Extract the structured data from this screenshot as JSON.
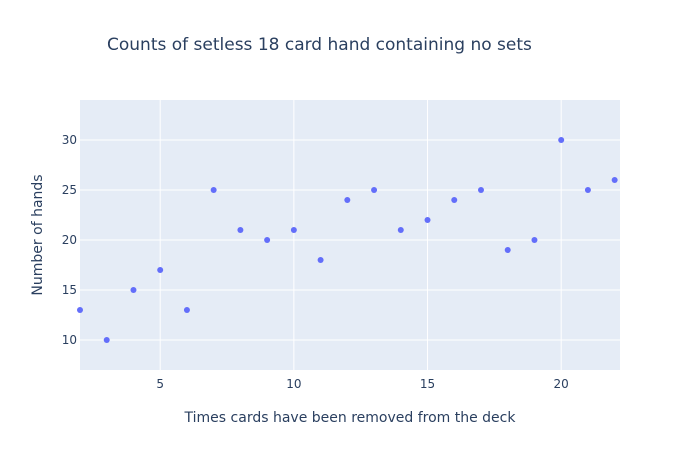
{
  "chart_data": {
    "type": "scatter",
    "title": "Counts of setless 18 card hand containing no sets",
    "xlabel": "Times cards have been removed from the deck",
    "ylabel": "Number of hands",
    "xlim": [
      2,
      22.2
    ],
    "ylim": [
      7,
      34
    ],
    "x_ticks": [
      5,
      10,
      15,
      20
    ],
    "y_ticks": [
      10,
      15,
      20,
      25,
      30
    ],
    "grid": true,
    "marker_color": "#636efa",
    "background_color": "#e5ecf6",
    "points": [
      {
        "x": 2,
        "y": 13
      },
      {
        "x": 3,
        "y": 10
      },
      {
        "x": 4,
        "y": 15
      },
      {
        "x": 5,
        "y": 17
      },
      {
        "x": 6,
        "y": 13
      },
      {
        "x": 7,
        "y": 25
      },
      {
        "x": 8,
        "y": 21
      },
      {
        "x": 9,
        "y": 20
      },
      {
        "x": 10,
        "y": 21
      },
      {
        "x": 11,
        "y": 18
      },
      {
        "x": 12,
        "y": 24
      },
      {
        "x": 13,
        "y": 25
      },
      {
        "x": 14,
        "y": 21
      },
      {
        "x": 15,
        "y": 22
      },
      {
        "x": 16,
        "y": 24
      },
      {
        "x": 17,
        "y": 25
      },
      {
        "x": 18,
        "y": 19
      },
      {
        "x": 19,
        "y": 20
      },
      {
        "x": 20,
        "y": 30
      },
      {
        "x": 21,
        "y": 25
      },
      {
        "x": 22,
        "y": 26
      }
    ]
  }
}
